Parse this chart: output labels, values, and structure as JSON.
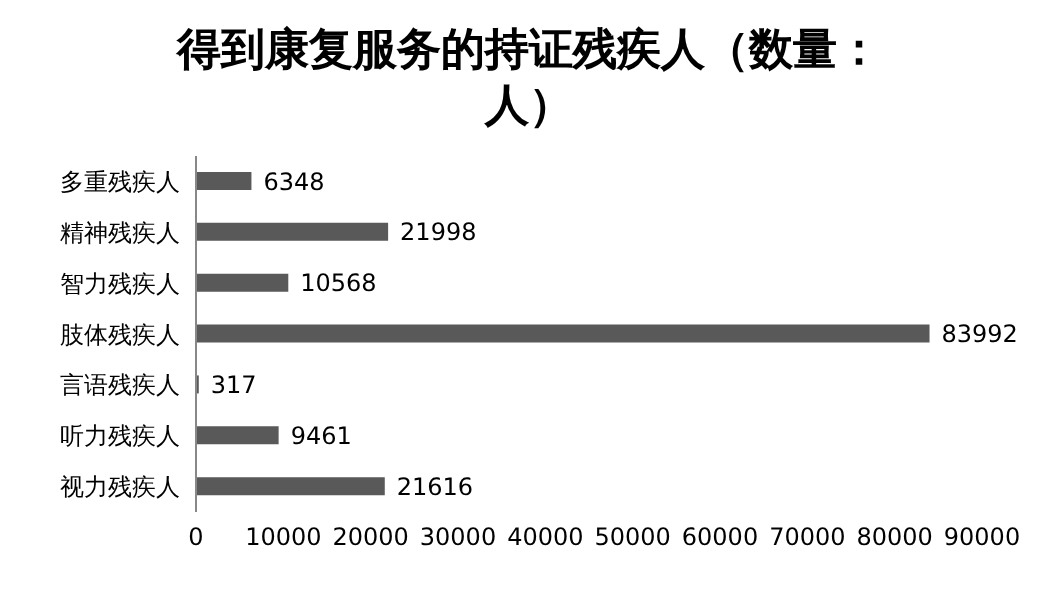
{
  "chart_data": {
    "type": "bar",
    "orientation": "horizontal",
    "title": "得到康复服务的持证残疾人（数量：人）",
    "categories": [
      "多重残疾人",
      "精神残疾人",
      "智力残疾人",
      "肢体残疾人",
      "言语残疾人",
      "听力残疾人",
      "视力残疾人"
    ],
    "values": [
      6348,
      21998,
      10568,
      83992,
      317,
      9461,
      21616
    ],
    "color": "#595959",
    "xlim": [
      0,
      90000
    ],
    "xticks": [
      0,
      10000,
      20000,
      30000,
      40000,
      50000,
      60000,
      70000,
      80000,
      90000
    ],
    "grid": false,
    "legend": false,
    "data_labels": true
  }
}
